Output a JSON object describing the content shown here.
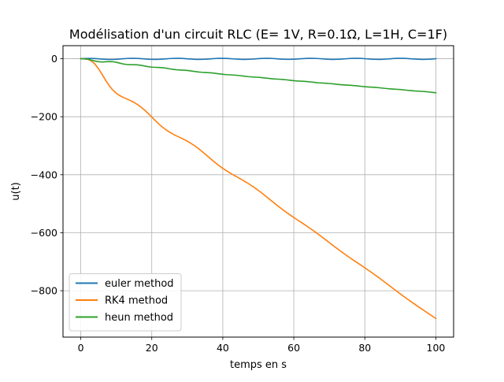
{
  "chart_data": {
    "type": "line",
    "title": "Modélisation d'un circuit RLC (E= 1V, R=0.1Ω, L=1H, C=1F)",
    "xlabel": "temps en s",
    "ylabel": "u(t)",
    "xlim": [
      -5,
      105
    ],
    "ylim": [
      -960,
      45
    ],
    "xticks": [
      0,
      20,
      40,
      60,
      80,
      100
    ],
    "yticks": [
      0,
      -200,
      -400,
      -600,
      -800
    ],
    "grid": true,
    "legend_position": "lower-left",
    "series": [
      {
        "name": "euler method",
        "color": "#1f77b4",
        "x": [
          0,
          1,
          2,
          3,
          4,
          5,
          6,
          7,
          8,
          9,
          10,
          11,
          12,
          13,
          14,
          15,
          16,
          17,
          18,
          19,
          20,
          21,
          22,
          23,
          24,
          25,
          26,
          27,
          28,
          29,
          30,
          31,
          32,
          33,
          34,
          35,
          36,
          37,
          38,
          39,
          40,
          41,
          42,
          43,
          44,
          45,
          46,
          47,
          48,
          49,
          50,
          51,
          52,
          53,
          54,
          55,
          56,
          57,
          58,
          59,
          60,
          61,
          62,
          63,
          64,
          65,
          66,
          67,
          68,
          69,
          70,
          71,
          72,
          73,
          74,
          75,
          76,
          77,
          78,
          79,
          80,
          81,
          82,
          83,
          84,
          85,
          86,
          87,
          88,
          89,
          90,
          91,
          92,
          93,
          94,
          95,
          96,
          97,
          98,
          99,
          100
        ],
        "y": [
          0.0,
          0.7,
          1.1,
          1.1,
          0.6,
          -0.3,
          -1.3,
          -2.1,
          -2.5,
          -2.4,
          -1.9,
          -1.0,
          0.0,
          0.9,
          1.4,
          1.5,
          1.1,
          0.3,
          -0.7,
          -1.6,
          -2.2,
          -2.3,
          -2.0,
          -1.3,
          -0.4,
          0.5,
          1.2,
          1.5,
          1.3,
          0.7,
          -0.2,
          -1.1,
          -1.9,
          -2.3,
          -2.2,
          -1.7,
          -0.9,
          0.1,
          0.9,
          1.4,
          1.5,
          1.1,
          0.4,
          -0.5,
          -1.4,
          -2.0,
          -2.3,
          -2.1,
          -1.5,
          -0.6,
          0.3,
          1.1,
          1.5,
          1.4,
          0.9,
          0.1,
          -0.9,
          -1.7,
          -2.2,
          -2.2,
          -1.8,
          -1.1,
          -0.1,
          0.8,
          1.4,
          1.5,
          1.2,
          0.5,
          -0.4,
          -1.3,
          -2.0,
          -2.3,
          -2.1,
          -1.6,
          -0.7,
          0.2,
          1.0,
          1.5,
          1.4,
          1.0,
          0.2,
          -0.7,
          -1.6,
          -2.1,
          -2.3,
          -1.9,
          -1.2,
          -0.3,
          0.6,
          1.3,
          1.5,
          1.3,
          0.7,
          -0.2,
          -1.1,
          -1.8,
          -2.3,
          -2.2,
          -1.7,
          -0.9,
          0.1
        ]
      },
      {
        "name": "RK4 method",
        "color": "#ff7f0e",
        "x": [
          0,
          1,
          2,
          3,
          4,
          5,
          6,
          7,
          8,
          9,
          10,
          11,
          12,
          13,
          14,
          15,
          16,
          17,
          18,
          19,
          20,
          21,
          22,
          23,
          24,
          25,
          26,
          27,
          28,
          29,
          30,
          31,
          32,
          33,
          34,
          35,
          36,
          37,
          38,
          39,
          40,
          41,
          42,
          43,
          44,
          45,
          46,
          47,
          48,
          49,
          50,
          51,
          52,
          53,
          54,
          55,
          56,
          57,
          58,
          59,
          60,
          61,
          62,
          63,
          64,
          65,
          66,
          67,
          68,
          69,
          70,
          71,
          72,
          73,
          74,
          75,
          76,
          77,
          78,
          79,
          80,
          81,
          82,
          83,
          84,
          85,
          86,
          87,
          88,
          89,
          90,
          91,
          92,
          93,
          94,
          95,
          96,
          97,
          98,
          99,
          100
        ],
        "y": [
          0.0,
          -0.5,
          -2.0,
          -7.6,
          -18.5,
          -34.4,
          -53.9,
          -74.0,
          -92.5,
          -107.7,
          -119.0,
          -127.2,
          -133.4,
          -138.8,
          -144.3,
          -150.6,
          -158.1,
          -167.0,
          -177.3,
          -188.9,
          -201.1,
          -213.4,
          -225.1,
          -235.7,
          -245.0,
          -253.0,
          -260.0,
          -266.2,
          -272.0,
          -278.0,
          -284.5,
          -291.6,
          -299.6,
          -308.5,
          -318.2,
          -328.5,
          -339.0,
          -349.5,
          -359.6,
          -369.1,
          -378.0,
          -386.1,
          -393.7,
          -400.8,
          -407.7,
          -414.6,
          -421.6,
          -429.0,
          -436.8,
          -445.1,
          -454.0,
          -463.3,
          -473.0,
          -482.9,
          -492.8,
          -502.7,
          -512.3,
          -521.6,
          -530.5,
          -539.1,
          -547.5,
          -555.6,
          -563.7,
          -571.8,
          -580.1,
          -588.5,
          -597.2,
          -606.2,
          -615.4,
          -624.7,
          -634.1,
          -643.5,
          -652.8,
          -661.9,
          -670.8,
          -679.5,
          -688.0,
          -696.3,
          -704.5,
          -712.7,
          -721.0,
          -729.4,
          -737.9,
          -746.7,
          -755.6,
          -764.7,
          -773.9,
          -783.2,
          -792.5,
          -801.8,
          -811.0,
          -820.0,
          -828.9,
          -837.6,
          -846.1,
          -854.5,
          -862.8,
          -871.0,
          -879.3,
          -887.6,
          -896.0
        ]
      },
      {
        "name": "heun method",
        "color": "#2ca02c",
        "x": [
          0,
          1,
          2,
          3,
          4,
          5,
          6,
          7,
          8,
          9,
          10,
          11,
          12,
          13,
          14,
          15,
          16,
          17,
          18,
          19,
          20,
          21,
          22,
          23,
          24,
          25,
          26,
          27,
          28,
          29,
          30,
          31,
          32,
          33,
          34,
          35,
          36,
          37,
          38,
          39,
          40,
          41,
          42,
          43,
          44,
          45,
          46,
          47,
          48,
          49,
          50,
          51,
          52,
          53,
          54,
          55,
          56,
          57,
          58,
          59,
          60,
          61,
          62,
          63,
          64,
          65,
          66,
          67,
          68,
          69,
          70,
          71,
          72,
          73,
          74,
          75,
          76,
          77,
          78,
          79,
          80,
          81,
          82,
          83,
          84,
          85,
          86,
          87,
          88,
          89,
          90,
          91,
          92,
          93,
          94,
          95,
          96,
          97,
          98,
          99,
          100
        ],
        "y": [
          0.0,
          -0.5,
          -1.8,
          -4.5,
          -7.8,
          -10.2,
          -11.1,
          -10.6,
          -9.9,
          -10.3,
          -12.2,
          -15.3,
          -18.2,
          -19.9,
          -20.4,
          -20.6,
          -21.1,
          -22.7,
          -25.2,
          -27.5,
          -29.0,
          -29.7,
          -30.2,
          -31.0,
          -32.6,
          -34.8,
          -36.7,
          -38.1,
          -38.9,
          -39.5,
          -40.4,
          -42.0,
          -43.8,
          -45.5,
          -46.7,
          -47.5,
          -48.1,
          -49.0,
          -50.5,
          -52.2,
          -53.7,
          -54.8,
          -55.5,
          -56.2,
          -57.2,
          -58.6,
          -60.2,
          -61.6,
          -62.6,
          -63.3,
          -64.0,
          -65.1,
          -66.5,
          -68.0,
          -69.2,
          -70.1,
          -70.8,
          -71.6,
          -72.8,
          -74.3,
          -75.6,
          -76.6,
          -77.3,
          -78.0,
          -79.0,
          -80.3,
          -81.7,
          -83.0,
          -83.9,
          -84.6,
          -85.4,
          -86.5,
          -87.9,
          -89.2,
          -90.3,
          -91.1,
          -91.8,
          -92.6,
          -93.8,
          -95.2,
          -96.5,
          -97.4,
          -98.2,
          -98.9,
          -100.0,
          -101.3,
          -102.7,
          -103.8,
          -104.7,
          -105.4,
          -106.2,
          -107.4,
          -108.8,
          -110.0,
          -111.0,
          -111.7,
          -112.5,
          -113.4,
          -114.6,
          -116.0,
          -117.2
        ]
      }
    ]
  }
}
